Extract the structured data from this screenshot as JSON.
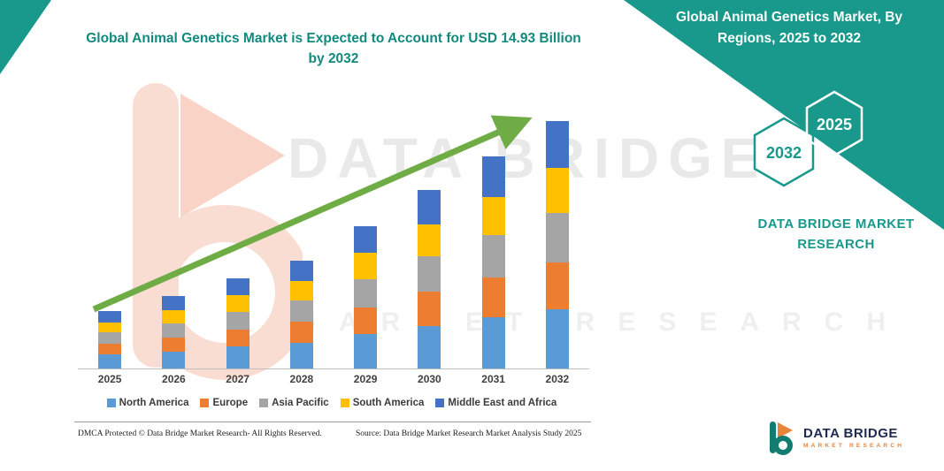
{
  "colors": {
    "teal": "#18998B",
    "arrow_green": "#6FAC46",
    "watermark_orange": "#F7BCA6",
    "logo_orange": "#E8833A",
    "logo_navy": "#1d2b4f"
  },
  "right_panel": {
    "heading": "Global Animal Genetics Market, By Regions, 2025 to 2032",
    "hexagon_left": "2032",
    "hexagon_right": "2025",
    "brand_text": "DATA BRIDGE MARKET RESEARCH"
  },
  "watermark": {
    "title": "DATA BRIDGE",
    "subtitle": "MARKET RESEARCH"
  },
  "footer": {
    "dmca": "DMCA Protected © Data Bridge Market Research-  All Rights Reserved.",
    "source": "Source: Data Bridge Market Research  Market Analysis Study 2025"
  },
  "logo": {
    "title": "DATA BRIDGE",
    "subtitle": "MARKET RESEARCH"
  },
  "chart_data": {
    "type": "bar",
    "stacked": true,
    "title": "Global Animal Genetics Market is Expected to Account for USD 14.93 Billion by 2032",
    "unit": "USD Billion",
    "categories": [
      "2025",
      "2026",
      "2027",
      "2028",
      "2029",
      "2030",
      "2031",
      "2032"
    ],
    "series": [
      {
        "name": "North America",
        "color": "#5B9BD5",
        "values": [
          0.83,
          1.04,
          1.31,
          1.56,
          2.06,
          2.58,
          3.07,
          3.58
        ]
      },
      {
        "name": "Europe",
        "color": "#ED7D31",
        "values": [
          0.66,
          0.83,
          1.04,
          1.24,
          1.63,
          2.04,
          2.43,
          2.84
        ]
      },
      {
        "name": "Asia Pacific",
        "color": "#A5A5A5",
        "values": [
          0.69,
          0.87,
          1.09,
          1.3,
          1.72,
          2.15,
          2.56,
          2.99
        ]
      },
      {
        "name": "South America",
        "color": "#FFC000",
        "values": [
          0.62,
          0.78,
          0.98,
          1.17,
          1.55,
          1.94,
          2.3,
          2.69
        ]
      },
      {
        "name": "Middle East and Africa",
        "color": "#4472C4",
        "values": [
          0.65,
          0.83,
          1.03,
          1.23,
          1.62,
          2.04,
          2.44,
          2.83
        ]
      }
    ],
    "totals": [
      3.45,
      4.35,
      5.45,
      6.5,
      8.58,
      10.75,
      12.8,
      14.93
    ],
    "ylim": [
      0,
      16
    ],
    "grid": false,
    "legend_position": "bottom",
    "trend_arrow": true
  }
}
